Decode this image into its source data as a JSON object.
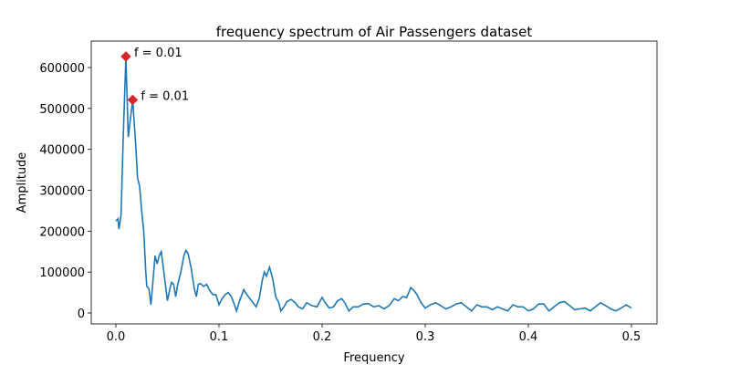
{
  "chart_data": {
    "type": "line",
    "title": "frequency spectrum of Air Passengers dataset",
    "x_label": "Frequency",
    "y_label": "Amplitude",
    "xlim": [
      -0.0239,
      0.5248
    ],
    "ylim": [
      -26766,
      664700
    ],
    "xticks": [
      {
        "value": 0,
        "label": "0.0"
      },
      0.1,
      0.2,
      0.3,
      0.4,
      0.5
    ],
    "yticks": [
      0,
      100000,
      200000,
      300000,
      400000,
      500000,
      600000
    ],
    "series": [
      {
        "color": "#1f77b4",
        "x": [
          0,
          0.002,
          0.003,
          0.005,
          0.007,
          0.0097,
          0.012,
          0.0163,
          0.019,
          0.021,
          0.023,
          0.025,
          0.027,
          0.029,
          0.03,
          0.032,
          0.034,
          0.036,
          0.038,
          0.04,
          0.042,
          0.044,
          0.046,
          0.048,
          0.05,
          0.052,
          0.054,
          0.056,
          0.058,
          0.06,
          0.063,
          0.066,
          0.068,
          0.07,
          0.073,
          0.076,
          0.078,
          0.08,
          0.082,
          0.085,
          0.088,
          0.091,
          0.094,
          0.097,
          0.1,
          0.103,
          0.106,
          0.109,
          0.112,
          0.115,
          0.117,
          0.12,
          0.124,
          0.127,
          0.13,
          0.133,
          0.136,
          0.139,
          0.142,
          0.144,
          0.146,
          0.149,
          0.152,
          0.155,
          0.158,
          0.16,
          0.163,
          0.166,
          0.17,
          0.174,
          0.177,
          0.181,
          0.185,
          0.19,
          0.195,
          0.2,
          0.203,
          0.207,
          0.211,
          0.215,
          0.219,
          0.222,
          0.226,
          0.23,
          0.235,
          0.24,
          0.245,
          0.25,
          0.255,
          0.26,
          0.265,
          0.27,
          0.274,
          0.278,
          0.282,
          0.286,
          0.289,
          0.292,
          0.296,
          0.3,
          0.305,
          0.31,
          0.315,
          0.32,
          0.325,
          0.33,
          0.335,
          0.34,
          0.345,
          0.35,
          0.355,
          0.36,
          0.365,
          0.37,
          0.375,
          0.38,
          0.385,
          0.39,
          0.395,
          0.4,
          0.405,
          0.41,
          0.415,
          0.42,
          0.425,
          0.43,
          0.435,
          0.44,
          0.445,
          0.45,
          0.455,
          0.46,
          0.465,
          0.47,
          0.475,
          0.48,
          0.485,
          0.49,
          0.495,
          0.5
        ],
        "values": [
          225000,
          230000,
          205000,
          240000,
          420000,
          627000,
          430000,
          521000,
          420000,
          330000,
          310000,
          250000,
          200000,
          100000,
          65000,
          60000,
          20000,
          80000,
          140000,
          120000,
          140000,
          150000,
          110000,
          70000,
          30000,
          55000,
          75000,
          70000,
          40000,
          70000,
          100000,
          140000,
          153000,
          145000,
          110000,
          60000,
          40000,
          70000,
          72000,
          65000,
          70000,
          55000,
          45000,
          45000,
          20000,
          35000,
          45000,
          50000,
          40000,
          20000,
          5000,
          30000,
          57000,
          45000,
          35000,
          25000,
          15000,
          35000,
          80000,
          100000,
          90000,
          112000,
          85000,
          40000,
          25000,
          5000,
          15000,
          28000,
          33000,
          25000,
          15000,
          10000,
          25000,
          18000,
          15000,
          38000,
          25000,
          12000,
          15000,
          30000,
          35000,
          25000,
          5000,
          15000,
          15000,
          22000,
          23000,
          15000,
          18000,
          10000,
          18000,
          35000,
          30000,
          40000,
          38000,
          62000,
          55000,
          45000,
          25000,
          12000,
          20000,
          25000,
          18000,
          10000,
          15000,
          22000,
          25000,
          15000,
          5000,
          20000,
          15000,
          15000,
          8000,
          15000,
          10000,
          5000,
          20000,
          15000,
          15000,
          5000,
          10000,
          22000,
          22000,
          5000,
          15000,
          25000,
          28000,
          18000,
          8000,
          10000,
          12000,
          5000,
          15000,
          25000,
          18000,
          10000,
          5000,
          12000,
          20000,
          12000
        ]
      }
    ],
    "markers": {
      "color": "#d62728",
      "x": [
        0.0097,
        0.0163
      ],
      "values": [
        627000,
        521000
      ],
      "labels": [
        "f = 0.01",
        "f = 0.01"
      ]
    }
  }
}
